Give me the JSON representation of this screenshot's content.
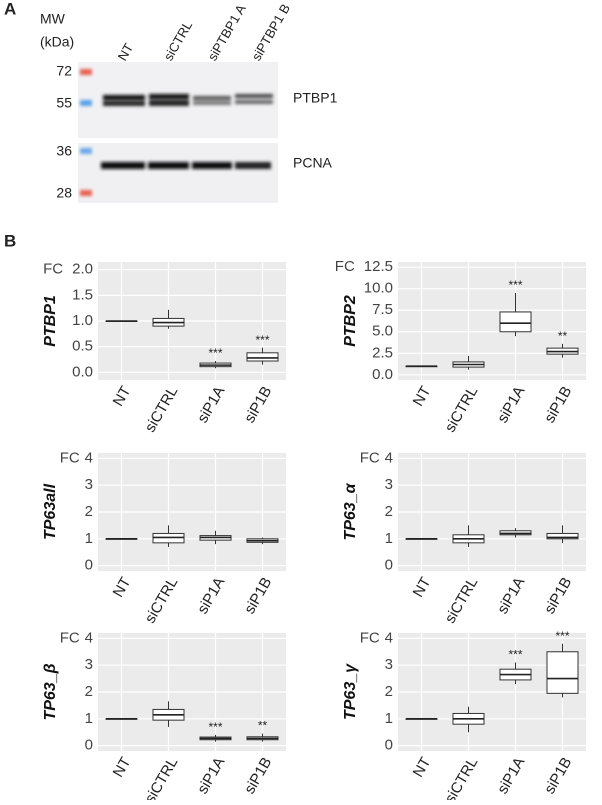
{
  "blot": {
    "panel": "A",
    "mw_label": "MW",
    "mw_unit": "(kDa)",
    "lanes": [
      "NT",
      "siCTRL",
      "siPTBP1 A",
      "siPTBP1 B"
    ],
    "markers": [
      72,
      55,
      36,
      28
    ],
    "bands": [
      "PTBP1",
      "PCNA"
    ]
  },
  "panel_b": "B",
  "chart_data": [
    {
      "type": "box",
      "ylabel": "PTBP1",
      "yunit": "FC",
      "categories": [
        "NT",
        "siCTRL",
        "siP1A",
        "siP1B"
      ],
      "stats": [
        {
          "min": 0.99,
          "q1": 1.0,
          "median": 1.0,
          "q3": 1.0,
          "max": 1.01
        },
        {
          "min": 0.85,
          "q1": 0.9,
          "median": 0.97,
          "q3": 1.05,
          "max": 1.22
        },
        {
          "min": 0.08,
          "q1": 0.11,
          "median": 0.14,
          "q3": 0.18,
          "max": 0.22
        },
        {
          "min": 0.15,
          "q1": 0.22,
          "median": 0.28,
          "q3": 0.38,
          "max": 0.48
        }
      ],
      "annotations": [
        null,
        null,
        "***",
        "***"
      ],
      "ylim": [
        -0.15,
        2.15
      ],
      "yticks": [
        {
          "value": 0,
          "label": "0.0"
        },
        {
          "value": 0.5,
          "label": "0.5"
        },
        {
          "value": 1,
          "label": "1.0"
        },
        {
          "value": 1.5,
          "label": "1.5"
        },
        {
          "value": 2,
          "label": "2.0"
        }
      ],
      "grid": true
    },
    {
      "type": "box",
      "ylabel": "PTBP2",
      "yunit": "FC",
      "categories": [
        "NT",
        "siCTRL",
        "siP1A",
        "siP1B"
      ],
      "stats": [
        {
          "min": 0.95,
          "q1": 1.0,
          "median": 1.0,
          "q3": 1.0,
          "max": 1.05
        },
        {
          "min": 0.6,
          "q1": 0.9,
          "median": 1.2,
          "q3": 1.5,
          "max": 2.2
        },
        {
          "min": 4.5,
          "q1": 5.0,
          "median": 6.0,
          "q3": 7.3,
          "max": 9.5
        },
        {
          "min": 2.0,
          "q1": 2.4,
          "median": 2.7,
          "q3": 3.1,
          "max": 3.6
        }
      ],
      "annotations": [
        null,
        null,
        "***",
        "**"
      ],
      "ylim": [
        -0.6,
        13.1
      ],
      "yticks": [
        {
          "value": 0,
          "label": "0.0"
        },
        {
          "value": 2.5,
          "label": "2.5"
        },
        {
          "value": 5,
          "label": "5.0"
        },
        {
          "value": 7.5,
          "label": "7.5"
        },
        {
          "value": 10,
          "label": "10.0"
        },
        {
          "value": 12.5,
          "label": "12.5"
        }
      ],
      "grid": true
    },
    {
      "type": "box",
      "ylabel": "TP63all",
      "yunit": "FC",
      "categories": [
        "NT",
        "siCTRL",
        "siP1A",
        "siP1B"
      ],
      "stats": [
        {
          "min": 0.99,
          "q1": 1.0,
          "median": 1.0,
          "q3": 1.0,
          "max": 1.01
        },
        {
          "min": 0.7,
          "q1": 0.85,
          "median": 1.05,
          "q3": 1.2,
          "max": 1.5
        },
        {
          "min": 0.8,
          "q1": 0.95,
          "median": 1.05,
          "q3": 1.12,
          "max": 1.3
        },
        {
          "min": 0.8,
          "q1": 0.87,
          "median": 0.93,
          "q3": 1.0,
          "max": 1.05
        }
      ],
      "annotations": [
        null,
        null,
        null,
        null
      ],
      "ylim": [
        -0.2,
        4.2
      ],
      "yticks": [
        0,
        1,
        2,
        3,
        4
      ],
      "grid": true
    },
    {
      "type": "box",
      "ylabel": "TP63_α",
      "yunit": "FC",
      "categories": [
        "NT",
        "siCTRL",
        "siP1A",
        "siP1B"
      ],
      "stats": [
        {
          "min": 0.99,
          "q1": 1.0,
          "median": 1.0,
          "q3": 1.0,
          "max": 1.01
        },
        {
          "min": 0.7,
          "q1": 0.85,
          "median": 1.0,
          "q3": 1.15,
          "max": 1.5
        },
        {
          "min": 1.05,
          "q1": 1.15,
          "median": 1.2,
          "q3": 1.3,
          "max": 1.4
        },
        {
          "min": 0.85,
          "q1": 1.0,
          "median": 1.05,
          "q3": 1.2,
          "max": 1.5
        }
      ],
      "annotations": [
        null,
        null,
        null,
        null
      ],
      "ylim": [
        -0.2,
        4.2
      ],
      "yticks": [
        0,
        1,
        2,
        3,
        4
      ],
      "grid": true
    },
    {
      "type": "box",
      "ylabel": "TP63_β",
      "yunit": "FC",
      "categories": [
        "NT",
        "siCTRL",
        "siP1A",
        "siP1B"
      ],
      "stats": [
        {
          "min": 0.99,
          "q1": 1.0,
          "median": 1.0,
          "q3": 1.0,
          "max": 1.01
        },
        {
          "min": 0.7,
          "q1": 0.95,
          "median": 1.15,
          "q3": 1.35,
          "max": 1.65
        },
        {
          "min": 0.15,
          "q1": 0.22,
          "median": 0.27,
          "q3": 0.32,
          "max": 0.4
        },
        {
          "min": 0.15,
          "q1": 0.22,
          "median": 0.27,
          "q3": 0.33,
          "max": 0.45
        }
      ],
      "annotations": [
        null,
        null,
        "***",
        "**"
      ],
      "ylim": [
        -0.2,
        4.2
      ],
      "yticks": [
        0,
        1,
        2,
        3,
        4
      ],
      "grid": true
    },
    {
      "type": "box",
      "ylabel": "TP63_γ",
      "yunit": "FC",
      "categories": [
        "NT",
        "siCTRL",
        "siP1A",
        "siP1B"
      ],
      "stats": [
        {
          "min": 0.99,
          "q1": 1.0,
          "median": 1.0,
          "q3": 1.0,
          "max": 1.01
        },
        {
          "min": 0.5,
          "q1": 0.8,
          "median": 1.0,
          "q3": 1.2,
          "max": 1.45
        },
        {
          "min": 2.3,
          "q1": 2.45,
          "median": 2.65,
          "q3": 2.85,
          "max": 3.1
        },
        {
          "min": 1.8,
          "q1": 1.95,
          "median": 2.5,
          "q3": 3.5,
          "max": 3.8
        }
      ],
      "annotations": [
        null,
        null,
        "***",
        "***"
      ],
      "ylim": [
        -0.2,
        4.2
      ],
      "yticks": [
        0,
        1,
        2,
        3,
        4
      ],
      "grid": true
    }
  ]
}
